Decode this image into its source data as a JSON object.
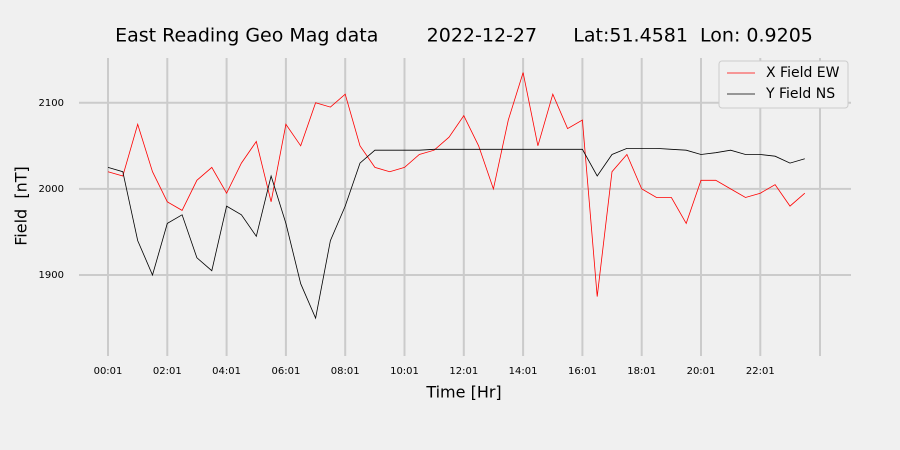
{
  "chart_data": {
    "type": "line",
    "title": "East Reading Geo Mag data        2022-12-27      Lat:51.4581  Lon: 0.9205",
    "xlabel": "Time  [Hr]",
    "ylabel": "Field  [nT]",
    "x": [
      "00:01",
      "00:31",
      "01:01",
      "01:31",
      "02:01",
      "02:31",
      "03:01",
      "03:31",
      "04:01",
      "04:31",
      "05:01",
      "05:31",
      "06:01",
      "06:31",
      "07:01",
      "07:31",
      "08:01",
      "08:31",
      "09:01",
      "09:31",
      "10:01",
      "10:31",
      "11:01",
      "11:31",
      "12:01",
      "12:31",
      "13:01",
      "13:31",
      "14:01",
      "14:31",
      "15:01",
      "15:31",
      "16:01",
      "16:31",
      "17:01",
      "17:31",
      "18:01",
      "18:31",
      "19:01",
      "19:31",
      "20:01",
      "20:31",
      "21:01",
      "21:31",
      "22:01",
      "22:31",
      "23:01",
      "23:31"
    ],
    "series": [
      {
        "name": "X Field EW",
        "color": "#ff0000",
        "values": [
          2020,
          2015,
          2075,
          2020,
          1985,
          1975,
          2010,
          2025,
          1995,
          2030,
          2055,
          1985,
          2075,
          2050,
          2100,
          2095,
          2110,
          2050,
          2025,
          2020,
          2025,
          2040,
          2045,
          2060,
          2085,
          2050,
          2000,
          2080,
          2135,
          2050,
          2110,
          2070,
          2080,
          1875,
          2020,
          2040,
          2000,
          1990,
          1990,
          1960,
          2010,
          2010,
          2000,
          1990,
          1995,
          2005,
          1980,
          1995
        ]
      },
      {
        "name": "Y Field NS",
        "color": "#000000",
        "values": [
          2025,
          2020,
          1940,
          1900,
          1960,
          1970,
          1920,
          1905,
          1980,
          1970,
          1945,
          2015,
          1960,
          1890,
          1850,
          1940,
          1980,
          2030,
          2045,
          2045,
          2045,
          2045,
          2046,
          2046,
          2046,
          2046,
          2046,
          2046,
          2046,
          2046,
          2046,
          2046,
          2046,
          2015,
          2040,
          2047,
          2047,
          2047,
          2046,
          2045,
          2040,
          2042,
          2045,
          2040,
          2040,
          2038,
          2030,
          2035
        ]
      }
    ],
    "xticks": [
      "00:01",
      "02:01",
      "04:01",
      "06:01",
      "08:01",
      "10:01",
      "12:01",
      "14:01",
      "16:01",
      "18:01",
      "20:01",
      "22:01"
    ],
    "ylim": [
      1806,
      2152
    ],
    "yticks": [
      1900,
      2000,
      2100
    ],
    "grid": true,
    "legend": "upper right"
  }
}
